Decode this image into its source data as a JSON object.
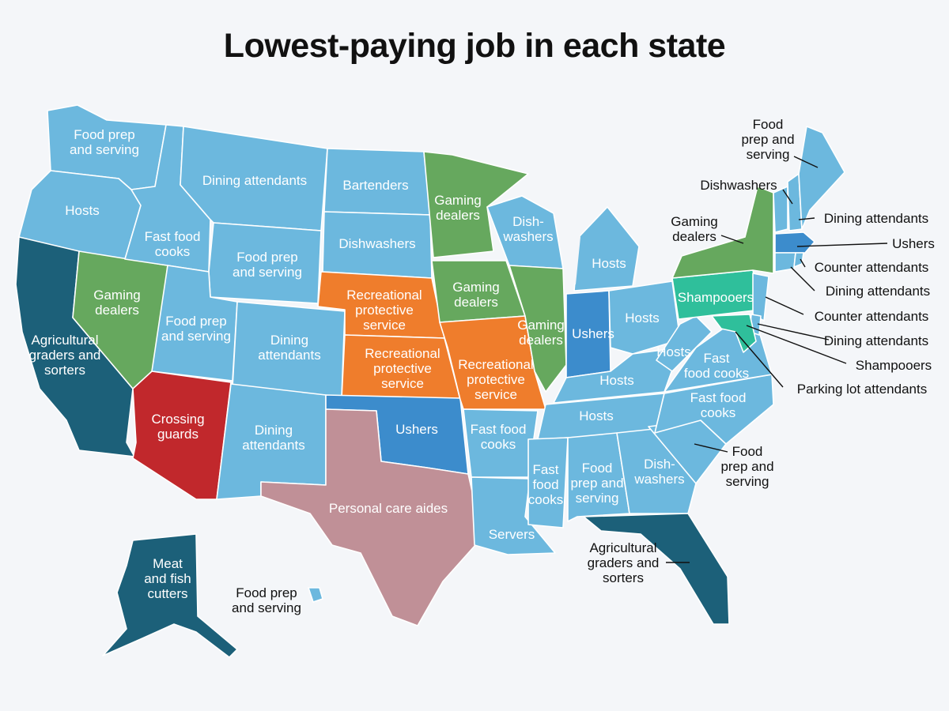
{
  "title": "Lowest-paying job in each state",
  "colors": {
    "light_blue": "#6cb8de",
    "dark_teal": "#1c6079",
    "mid_blue": "#3c8ccc",
    "green": "#66a85e",
    "orange": "#ef7d2c",
    "red": "#c1282c",
    "mauve": "#c09097",
    "mint": "#2fbf9b"
  },
  "states": {
    "WA": "Food prep and serving",
    "OR": "Hosts",
    "CA": "Agricultural graders and sorters",
    "NV": "Gaming dealers",
    "ID": "Fast food cooks",
    "MT": "Dining attendants",
    "WY": "Food prep and serving",
    "UT": "Food prep and serving",
    "AZ": "Crossing guards",
    "CO": "Dining attendants",
    "NM": "Dining attendants",
    "ND": "Bartenders",
    "SD": "Dishwashers",
    "NE": "Recreational protective service",
    "KS": "Recreational protective service",
    "OK": "Ushers",
    "TX": "Personal care aides",
    "MN": "Gaming dealers",
    "IA": "Gaming dealers",
    "MO": "Recreational protective service",
    "AR": "Fast food cooks",
    "LA": "Servers",
    "WI": "Dish-washers",
    "IL": "Gaming dealers",
    "MI": "Hosts",
    "IN": "Ushers",
    "OH": "Hosts",
    "KY": "Hosts",
    "TN": "Hosts",
    "MS": "Fast food cooks",
    "AL": "Food prep and serving",
    "GA": "Dish-washers",
    "FL": "Agricultural graders and sorters",
    "SC": "Food prep and serving",
    "NC": "Fast food cooks",
    "VA": "Fast food cooks",
    "WV": "Hosts",
    "PA": "Shampooers",
    "NY": "Gaming dealers",
    "VT": "Dishwashers",
    "NH": "Dining attendants",
    "ME": "Food prep and serving",
    "MA": "Ushers",
    "RI": "Counter attendants",
    "CT": "Dining attendants",
    "NJ": "Counter attendants",
    "DE": "Dining attendants",
    "MD": "Shampooers",
    "DC": "Parking lot attendants",
    "AK": "Meat and fish cutters",
    "HI": "Food prep and serving"
  },
  "labels": {
    "wa": [
      "Food prep",
      "and serving"
    ],
    "mt": [
      "Dining attendants"
    ],
    "or": [
      "Hosts"
    ],
    "id": [
      "Fast food",
      "cooks"
    ],
    "wy": [
      "Food prep",
      "and serving"
    ],
    "nv": [
      "Gaming",
      "dealers"
    ],
    "ut": [
      "Food prep",
      "and serving"
    ],
    "ca": [
      "Agricultural",
      "graders and",
      "sorters"
    ],
    "az": [
      "Crossing",
      "guards"
    ],
    "co": [
      "Dining",
      "attendants"
    ],
    "nm": [
      "Dining",
      "attendants"
    ],
    "nd": [
      "Bartenders"
    ],
    "sd": [
      "Dishwashers"
    ],
    "ne": [
      "Recreational",
      "protective",
      "service"
    ],
    "ks": [
      "Recreational",
      "protective",
      "service"
    ],
    "ok": [
      "Ushers"
    ],
    "tx": [
      "Personal care aides"
    ],
    "mn": [
      "Gaming",
      "dealers"
    ],
    "ia": [
      "Gaming",
      "dealers"
    ],
    "mo": [
      "Recreational",
      "protective",
      "service"
    ],
    "ar": [
      "Fast food",
      "cooks"
    ],
    "la": [
      "Servers"
    ],
    "wi": [
      "Dish-",
      "washers"
    ],
    "il": [
      "Gaming",
      "dealers"
    ],
    "mi": [
      "Hosts"
    ],
    "in": [
      "Ushers"
    ],
    "oh": [
      "Hosts"
    ],
    "ky": [
      "Hosts"
    ],
    "wv": [
      "Hosts"
    ],
    "va": [
      "Fast",
      "food cooks"
    ],
    "tn": [
      "Hosts"
    ],
    "nc": [
      "Fast food",
      "cooks"
    ],
    "ms": [
      "Fast",
      "food",
      "cooks"
    ],
    "al": [
      "Food",
      "prep and",
      "serving"
    ],
    "ga": [
      "Dish-",
      "washers"
    ],
    "pa": [
      "Shampooers"
    ],
    "ak": [
      "Meat",
      "and fish",
      "cutters"
    ],
    "hi": [
      "Food prep",
      "and serving"
    ]
  },
  "callouts": {
    "me": [
      "Food",
      "prep and",
      "serving"
    ],
    "vt": [
      "Dishwashers"
    ],
    "nh": [
      "Dining attendants"
    ],
    "ny": [
      "Gaming",
      "dealers"
    ],
    "ma": [
      "Ushers"
    ],
    "ri": [
      "Counter attendants"
    ],
    "ct": [
      "Dining attendants"
    ],
    "nj": [
      "Counter attendants"
    ],
    "de": [
      "Dining attendants"
    ],
    "md": [
      "Shampooers"
    ],
    "dc": [
      "Parking lot attendants"
    ],
    "sc": [
      "Food",
      "prep and",
      "serving"
    ],
    "fl": [
      "Agricultural",
      "graders and",
      "sorters"
    ]
  }
}
